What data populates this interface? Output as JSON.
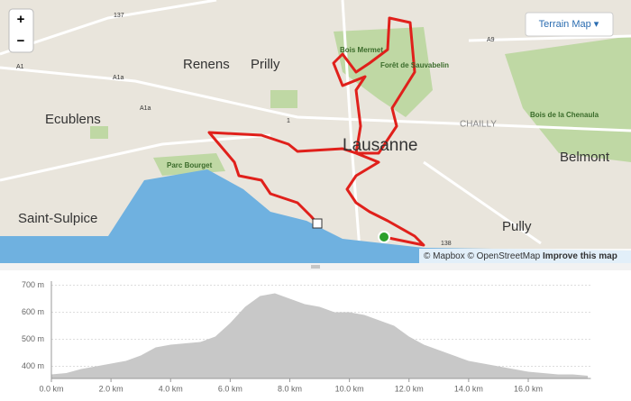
{
  "map": {
    "zoom_in": "+",
    "zoom_out": "−",
    "style_button": "Terrain Map ▾",
    "places": [
      "Renens",
      "Prilly",
      "Ecublens",
      "Lausanne",
      "Parc Bourget",
      "Saint-Sulpice",
      "Pully",
      "Belmont",
      "Bois Mermet",
      "Forêt de Sauvabelin",
      "Bois de la Chenaula",
      "CHAILLY"
    ],
    "roads": [
      "137",
      "A9",
      "A1",
      "A1a",
      "A1a",
      "1",
      "138"
    ],
    "attribution": "© Mapbox © OpenStreetMap",
    "improve": "Improve this map"
  },
  "chart_data": {
    "type": "area",
    "color": "#c8c8c8",
    "x": [
      0,
      0.5,
      1,
      1.5,
      2,
      2.5,
      3,
      3.5,
      4,
      4.5,
      5,
      5.5,
      6,
      6.5,
      7,
      7.5,
      8,
      8.5,
      9,
      9.5,
      10,
      10.5,
      11,
      11.5,
      12,
      12.5,
      13,
      13.5,
      14,
      14.5,
      15,
      15.5,
      16,
      16.5,
      17,
      17.5,
      18
    ],
    "values": [
      370,
      375,
      390,
      400,
      410,
      420,
      440,
      470,
      480,
      485,
      490,
      510,
      560,
      620,
      660,
      670,
      650,
      630,
      620,
      600,
      600,
      590,
      570,
      550,
      510,
      480,
      460,
      440,
      420,
      410,
      400,
      390,
      380,
      375,
      370,
      370,
      365
    ],
    "xlim": [
      0,
      18.1
    ],
    "ylim": [
      355,
      715
    ],
    "xticks": [
      {
        "value": 0,
        "label": "0.0 km"
      },
      {
        "value": 2,
        "label": "2.0 km"
      },
      {
        "value": 4,
        "label": "4.0 km"
      },
      {
        "value": 6,
        "label": "6.0 km"
      },
      {
        "value": 8,
        "label": "8.0 km"
      },
      {
        "value": 10,
        "label": "10.0 km"
      },
      {
        "value": 12,
        "label": "12.0 km"
      },
      {
        "value": 14,
        "label": "14.0 km"
      },
      {
        "value": 16,
        "label": "16.0 km"
      }
    ],
    "yticks": [
      {
        "value": 400,
        "label": "400 m"
      },
      {
        "value": 500,
        "label": "500 m"
      },
      {
        "value": 600,
        "label": "600 m"
      },
      {
        "value": 700,
        "label": "700 m"
      }
    ],
    "grid": true
  }
}
